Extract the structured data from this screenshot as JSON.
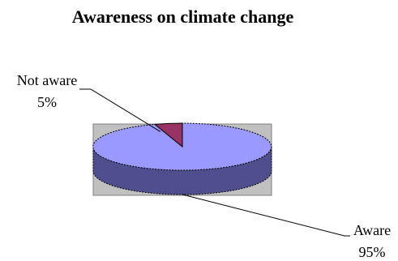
{
  "chart_data": {
    "type": "pie",
    "title": "Awareness on climate change",
    "style": "3d",
    "slices": [
      {
        "label": "Aware",
        "value": 95,
        "percent_label": "95%",
        "color": "#9999ff",
        "side_color": "#4f4f8f"
      },
      {
        "label": "Not aware",
        "value": 5,
        "percent_label": "5%",
        "color": "#993366",
        "side_color": "#5c1f3d"
      }
    ],
    "plot_area_color": "#c0c0c0",
    "legend": "none"
  }
}
